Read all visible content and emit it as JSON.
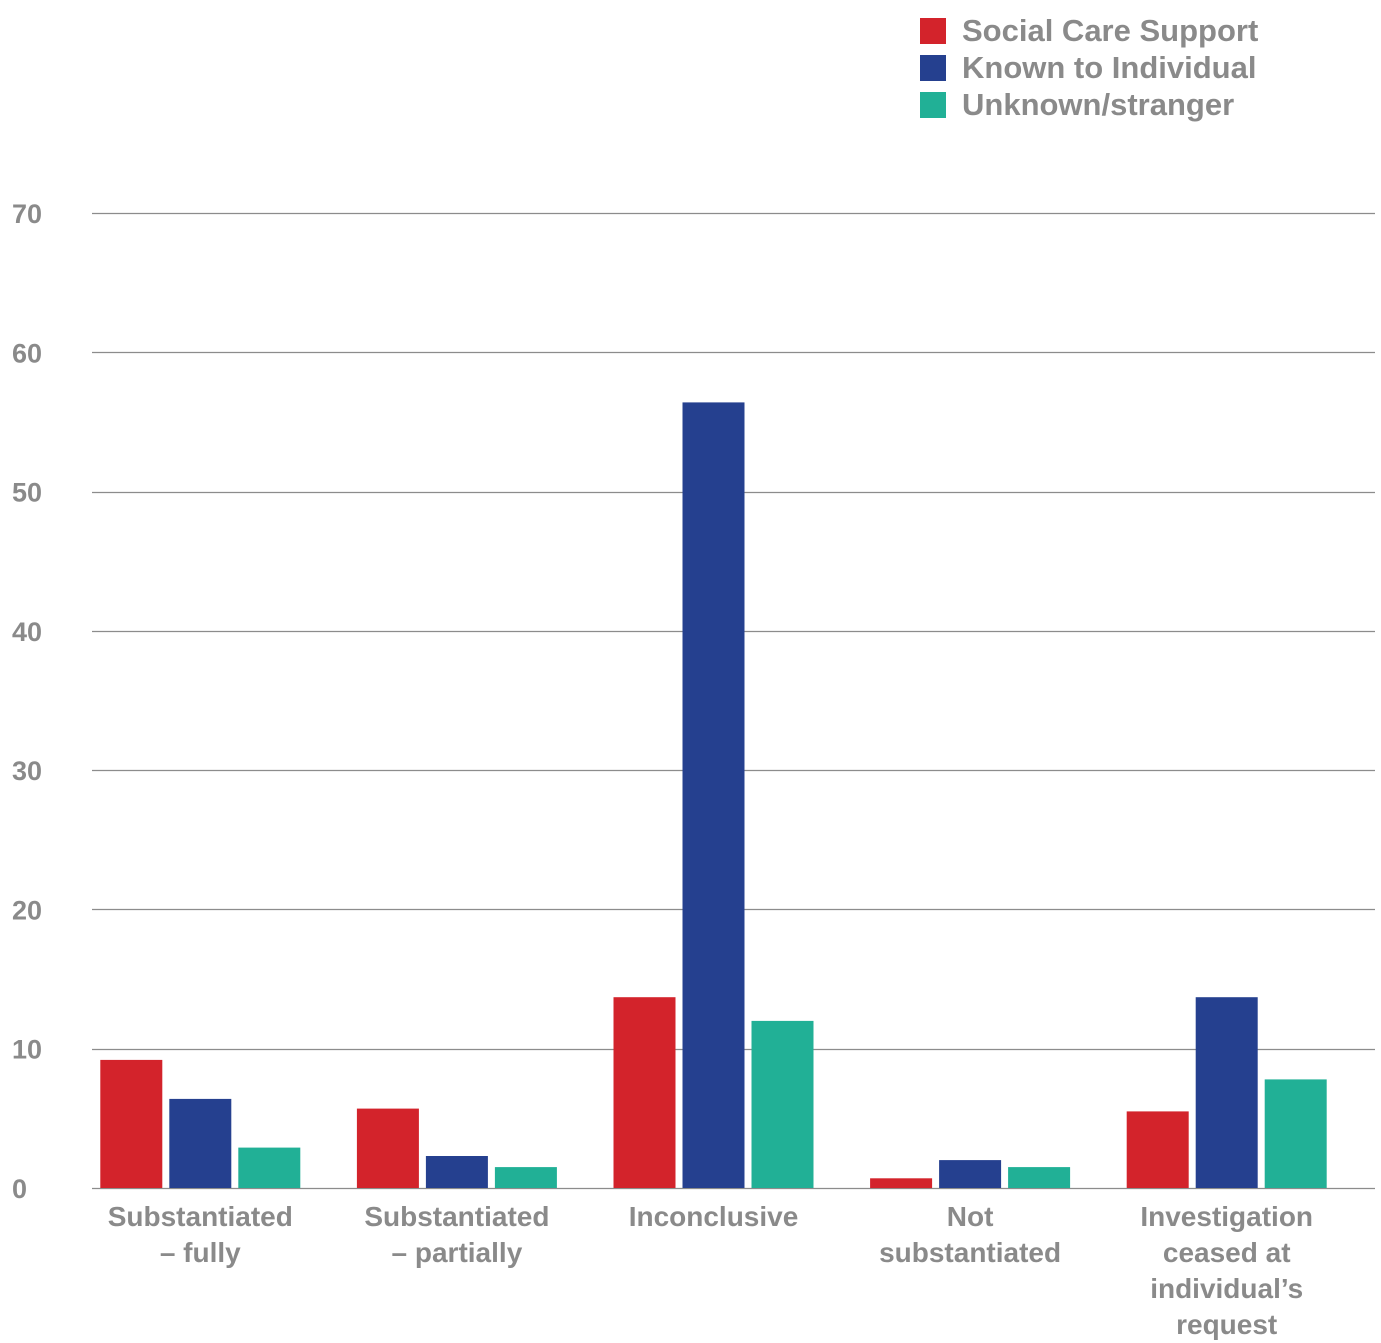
{
  "chart_data": {
    "type": "bar",
    "categories": [
      "Substantiated – fully",
      "Substantiated – partially",
      "Inconclusive",
      "Not substantiated",
      "Investigation ceased at individual’s request"
    ],
    "category_label_lines": [
      [
        "Substantiated",
        "– fully"
      ],
      [
        "Substantiated",
        "– partially"
      ],
      [
        "Inconclusive"
      ],
      [
        "Not",
        "substantiated"
      ],
      [
        "Investigation",
        "ceased at",
        "individual’s",
        "request"
      ]
    ],
    "series": [
      {
        "name": "Social Care Support",
        "color": "#d3232b",
        "values": [
          9.2,
          5.7,
          13.7,
          0.7,
          5.5
        ]
      },
      {
        "name": "Known to Individual",
        "color": "#25408f",
        "values": [
          6.4,
          2.3,
          56.4,
          2.0,
          13.7
        ]
      },
      {
        "name": "Unknown/stranger",
        "color": "#21b096",
        "values": [
          2.9,
          1.5,
          12.0,
          1.5,
          7.8
        ]
      }
    ],
    "yticks": [
      0,
      10,
      20,
      30,
      40,
      50,
      60,
      70
    ],
    "ylim": [
      0,
      70
    ],
    "title": "",
    "xlabel": "",
    "ylabel": "",
    "grid": true,
    "legend_position": "top-right"
  },
  "colors": {
    "grid": "#8c8c8c",
    "text": "#8a8a8a"
  }
}
